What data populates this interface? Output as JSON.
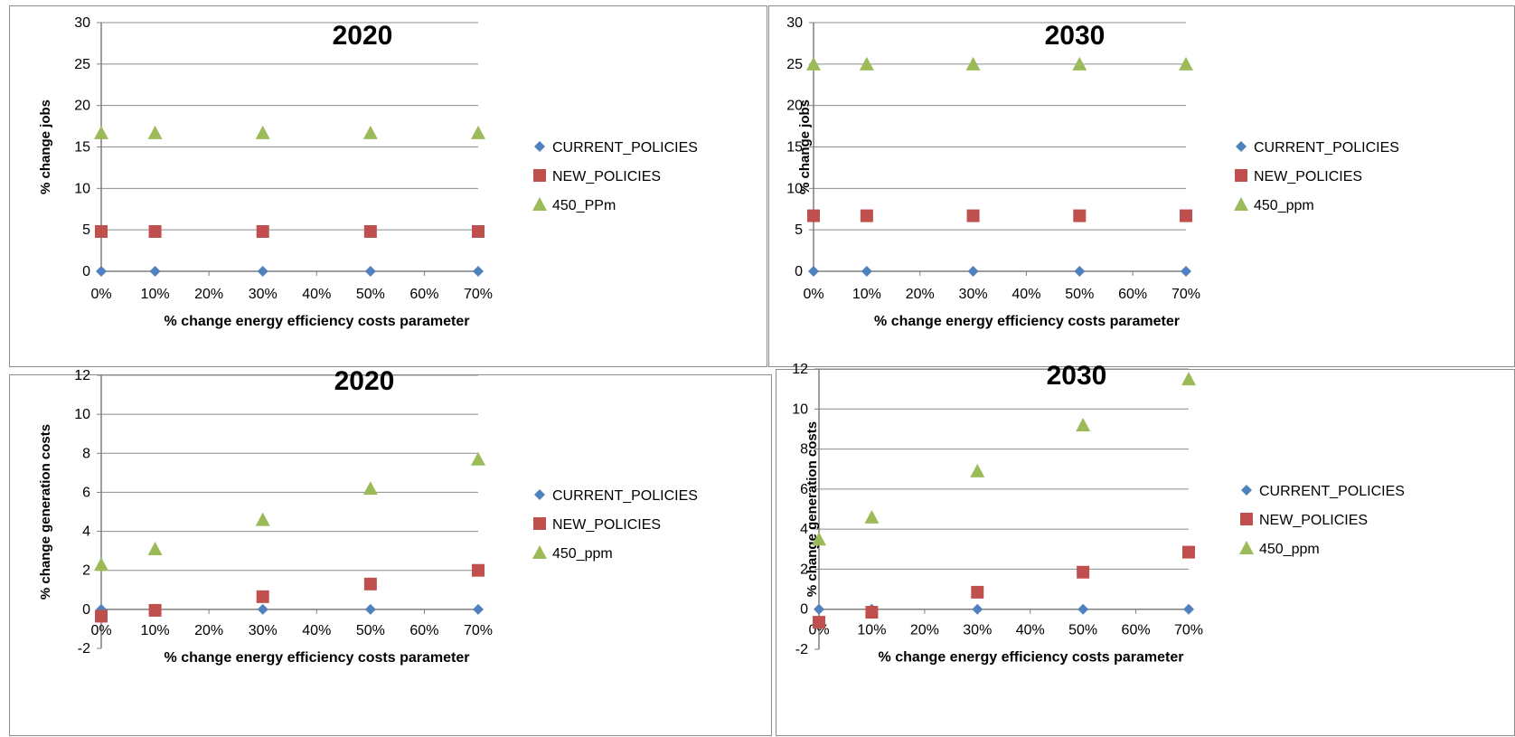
{
  "colors": {
    "series": [
      "#4f81bd",
      "#c0504d",
      "#9bbb59"
    ],
    "grid": "#8c8c8c",
    "axis": "#7f7f7f"
  },
  "chart_data": [
    {
      "type": "scatter",
      "title": "2020",
      "xlabel": "% change energy efficiency costs parameter",
      "ylabel": "% change jobs",
      "x_ticks": [
        "0%",
        "10%",
        "20%",
        "30%",
        "40%",
        "50%",
        "60%",
        "70%"
      ],
      "x": [
        0,
        10,
        30,
        50,
        70
      ],
      "ylim": [
        0,
        30
      ],
      "y_ticks": [
        0,
        5,
        10,
        15,
        20,
        25,
        30
      ],
      "grid": true,
      "legend_position": "right",
      "series": [
        {
          "name": "CURRENT_POLICIES",
          "marker": "diamond",
          "values": [
            0,
            0,
            0,
            0,
            0
          ]
        },
        {
          "name": "NEW_POLICIES",
          "marker": "square",
          "values": [
            4.8,
            4.8,
            4.8,
            4.8,
            4.8
          ]
        },
        {
          "name": "450_PPm",
          "marker": "triangle",
          "values": [
            16.7,
            16.7,
            16.7,
            16.7,
            16.7
          ]
        }
      ]
    },
    {
      "type": "scatter",
      "title": "2030",
      "xlabel": "% change energy efficiency costs parameter",
      "ylabel": "% change jobs",
      "x_ticks": [
        "0%",
        "10%",
        "20%",
        "30%",
        "40%",
        "50%",
        "60%",
        "70%"
      ],
      "x": [
        0,
        10,
        30,
        50,
        70
      ],
      "ylim": [
        0,
        30
      ],
      "y_ticks": [
        0,
        5,
        10,
        15,
        20,
        25,
        30
      ],
      "grid": true,
      "legend_position": "right",
      "series": [
        {
          "name": "CURRENT_POLICIES",
          "marker": "diamond",
          "values": [
            0,
            0,
            0,
            0,
            0
          ]
        },
        {
          "name": "NEW_POLICIES",
          "marker": "square",
          "values": [
            6.7,
            6.7,
            6.7,
            6.7,
            6.7
          ]
        },
        {
          "name": "450_ppm",
          "marker": "triangle",
          "values": [
            25,
            25,
            25,
            25,
            25
          ]
        }
      ]
    },
    {
      "type": "scatter",
      "title": "2020",
      "xlabel": "% change energy efficiency costs parameter",
      "ylabel": "% change generation costs",
      "x_ticks": [
        "0%",
        "10%",
        "20%",
        "30%",
        "40%",
        "50%",
        "60%",
        "70%"
      ],
      "x": [
        0,
        10,
        30,
        50,
        70
      ],
      "ylim": [
        -2,
        12
      ],
      "y_ticks": [
        -2,
        0,
        2,
        4,
        6,
        8,
        10,
        12
      ],
      "grid": true,
      "legend_position": "right",
      "series": [
        {
          "name": "CURRENT_POLICIES",
          "marker": "diamond",
          "values": [
            0,
            0,
            0,
            0,
            0
          ]
        },
        {
          "name": "NEW_POLICIES",
          "marker": "square",
          "values": [
            -0.35,
            -0.05,
            0.65,
            1.3,
            2.0
          ]
        },
        {
          "name": "450_ppm",
          "marker": "triangle",
          "values": [
            2.3,
            3.1,
            4.6,
            6.2,
            7.7
          ]
        }
      ]
    },
    {
      "type": "scatter",
      "title": "2030",
      "xlabel": "% change energy efficiency costs parameter",
      "ylabel": "% change generation costs",
      "x_ticks": [
        "0%",
        "10%",
        "20%",
        "30%",
        "40%",
        "50%",
        "60%",
        "70%"
      ],
      "x": [
        0,
        10,
        30,
        50,
        70
      ],
      "ylim": [
        -2,
        12
      ],
      "y_ticks": [
        -2,
        0,
        2,
        4,
        6,
        8,
        10,
        12
      ],
      "grid": true,
      "legend_position": "right",
      "series": [
        {
          "name": "CURRENT_POLICIES",
          "marker": "diamond",
          "values": [
            0,
            0,
            0,
            0,
            0
          ]
        },
        {
          "name": "NEW_POLICIES",
          "marker": "square",
          "values": [
            -0.65,
            -0.15,
            0.85,
            1.85,
            2.85
          ]
        },
        {
          "name": "450_ppm",
          "marker": "triangle",
          "values": [
            3.5,
            4.6,
            6.9,
            9.2,
            11.5
          ]
        }
      ]
    }
  ]
}
